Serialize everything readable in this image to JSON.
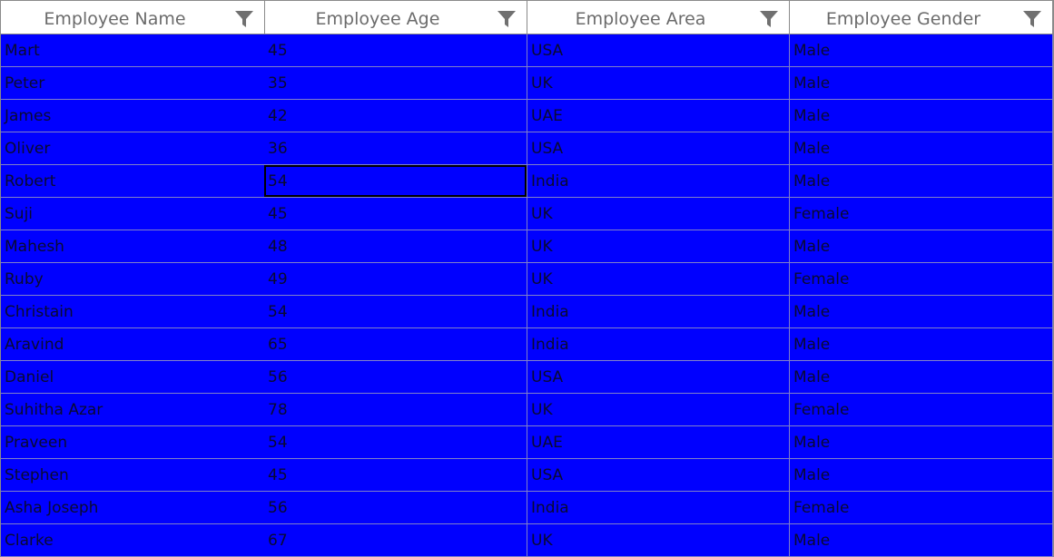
{
  "colors": {
    "row_background": "#0000ff",
    "header_background": "#ffffff",
    "header_text": "#6b6b6b",
    "cell_text": "#0a0a30",
    "filter_icon": "#707070"
  },
  "columns": [
    {
      "label": "Employee Name",
      "icon": "filter-icon"
    },
    {
      "label": "Employee Age",
      "icon": "filter-icon"
    },
    {
      "label": "Employee Area",
      "icon": "filter-icon"
    },
    {
      "label": "Employee Gender",
      "icon": "filter-icon"
    }
  ],
  "rows": [
    [
      "Mart",
      "45",
      "USA",
      "Male"
    ],
    [
      "Peter",
      "35",
      "UK",
      "Male"
    ],
    [
      "James",
      "42",
      "UAE",
      "Male"
    ],
    [
      "Oliver",
      "36",
      "USA",
      "Male"
    ],
    [
      "Robert",
      "54",
      "India",
      "Male"
    ],
    [
      "Suji",
      "45",
      "UK",
      "Female"
    ],
    [
      "Mahesh",
      "48",
      "UK",
      "Male"
    ],
    [
      "Ruby",
      "49",
      "UK",
      "Female"
    ],
    [
      "Christain",
      "54",
      "India",
      "Male"
    ],
    [
      "Aravind",
      "65",
      "India",
      "Male"
    ],
    [
      "Daniel",
      "56",
      "USA",
      "Male"
    ],
    [
      "Suhitha Azar",
      "78",
      "UK",
      "Female"
    ],
    [
      "Praveen",
      "54",
      "UAE",
      "Male"
    ],
    [
      "Stephen",
      "45",
      "USA",
      "Male"
    ],
    [
      "Asha Joseph",
      "56",
      "India",
      "Female"
    ],
    [
      "Clarke",
      "67",
      "UK",
      "Male"
    ]
  ],
  "current_cell": {
    "row": 4,
    "column": 1
  }
}
